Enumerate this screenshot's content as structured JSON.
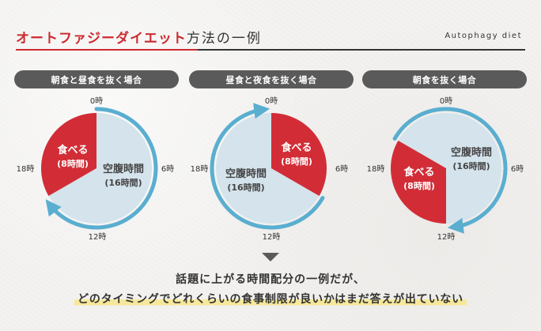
{
  "header": {
    "title_red": "オートファジーダイエット",
    "title_dark": "方法の一例",
    "subtitle": "Autophagy diet"
  },
  "diagrams": [
    {
      "pill_label": "朝食と昼食を抜く場合",
      "eat_label": "食べる",
      "eat_hours": "(8時間)",
      "fast_label": "空腹時間",
      "fast_hours": "(16時間)",
      "eat_from_hour": 16,
      "eat_to_hour": 24
    },
    {
      "pill_label": "昼食と夜食を抜く場合",
      "eat_label": "食べる",
      "eat_hours": "(8時間)",
      "fast_label": "空腹時間",
      "fast_hours": "(16時間)",
      "eat_from_hour": 0,
      "eat_to_hour": 8
    },
    {
      "pill_label": "朝食を抜く場合",
      "eat_label": "食べる",
      "eat_hours": "(8時間)",
      "fast_label": "空腹時間",
      "fast_hours": "(16時間)",
      "eat_from_hour": 12,
      "eat_to_hour": 20
    }
  ],
  "clock_labels": {
    "top": "0時",
    "right": "6時",
    "bottom": "12時",
    "left": "18時"
  },
  "caption": {
    "line1": "話題に上がる時間配分の一例だが、",
    "line2": "どのタイミングでどれくらいの食事制限が良いかはまだ答えが出ていない"
  },
  "colors": {
    "eat": "#d22d36",
    "fast": "#d4e3ec",
    "ring": "#5aaed0",
    "pill": "#5a5a5a",
    "highlight": "#f6e89a"
  }
}
